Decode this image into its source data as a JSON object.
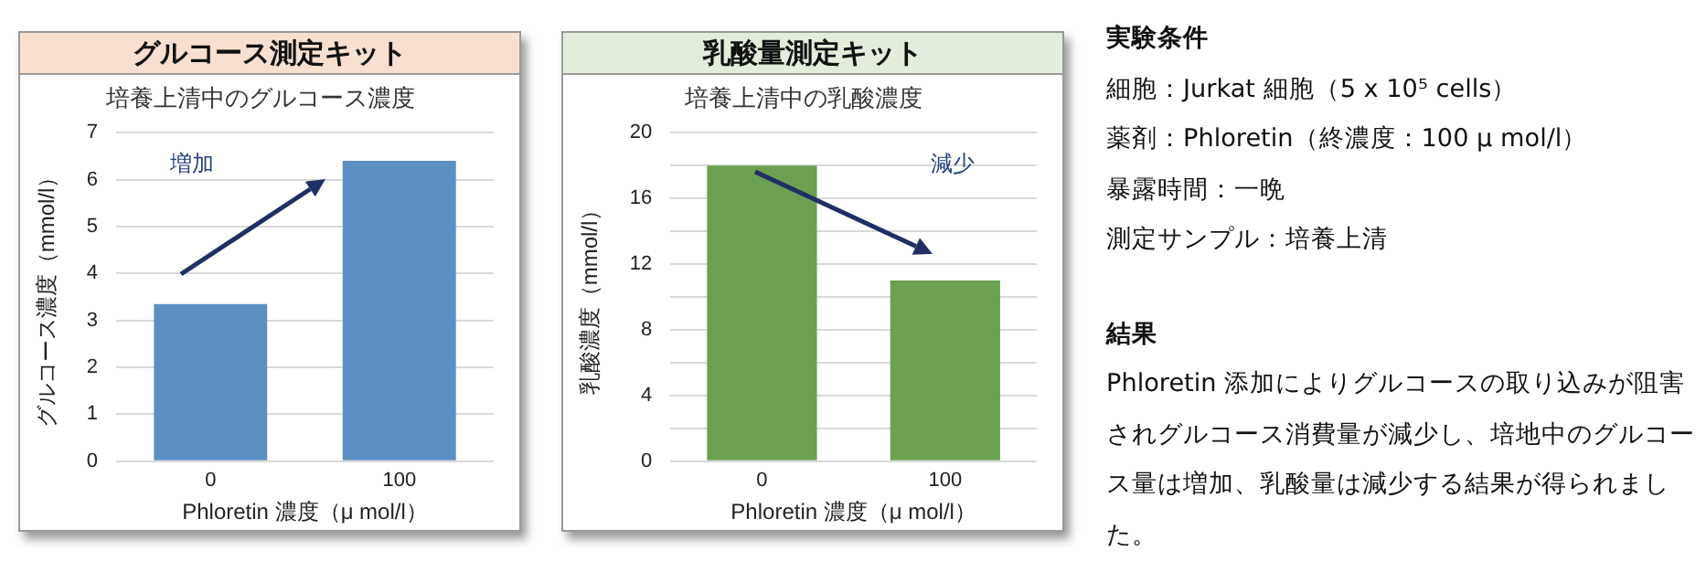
{
  "chart_data": [
    {
      "type": "bar",
      "title": "グルコース測定キット",
      "subtitle": "培養上清中のグルコース濃度",
      "xlabel": "Phloretin 濃度（μ mol/l）",
      "ylabel": "グルコース濃度（mmol/l）",
      "categories": [
        "0",
        "100"
      ],
      "series": [
        {
          "color": "#5b8fc2",
          "values": [
            3.35,
            6.4
          ]
        }
      ],
      "ylim": [
        0,
        7
      ],
      "yticks": [
        0,
        1,
        2,
        3,
        4,
        5,
        6,
        7
      ],
      "grid": "y",
      "legend": false,
      "annotations": [
        "増加"
      ]
    },
    {
      "type": "bar",
      "title": "乳酸量測定キット",
      "subtitle": "培養上清中の乳酸濃度",
      "xlabel": "Phloretin 濃度（μ mol/l）",
      "ylabel": "乳酸濃度（mmol/l）",
      "categories": [
        "0",
        "100"
      ],
      "series": [
        {
          "color": "#6aa050",
          "values": [
            18,
            11
          ]
        }
      ],
      "ylim": [
        0,
        20
      ],
      "yticks": [
        0,
        {
          "value": 2,
          "label": null
        },
        4,
        {
          "value": 6,
          "label": null
        },
        8,
        {
          "value": 10,
          "label": null
        },
        12,
        {
          "value": 14,
          "label": null
        },
        16,
        {
          "value": 18,
          "label": null
        },
        20
      ],
      "grid": "y",
      "legend": false,
      "annotations": [
        "減少"
      ]
    },
    {
      "type": "other",
      "title": "実験条件",
      "subtitle": "結果",
      "annotations": [
        "細胞：Jurkat 細胞（5 x 10⁵ cells）",
        "薬剤：Phloretin（終濃度：100 μ mol/l）",
        "暴露時間：一晩",
        "測定サンプル：培養上清",
        "Phloretin 添加によりグルコースの取り込みが阻害されグルコース消費量が減少し、培地中のグルコース量は増加、乳酸量は減少する結果が得られました。"
      ]
    }
  ]
}
